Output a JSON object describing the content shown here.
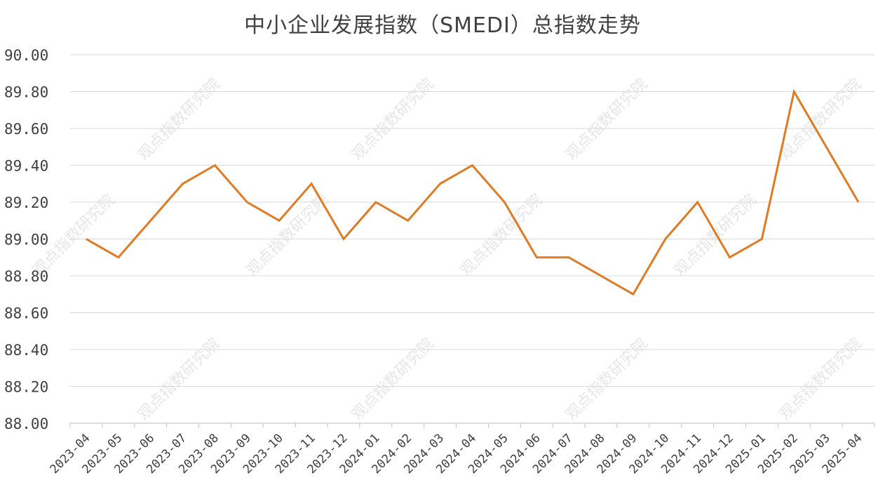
{
  "chart_data": {
    "type": "line",
    "title": "中小企业发展指数（SMEDI）总指数走势",
    "xlabel": "",
    "ylabel": "",
    "categories": [
      "2023-04",
      "2023-05",
      "2023-06",
      "2023-07",
      "2023-08",
      "2023-09",
      "2023-10",
      "2023-11",
      "2023-12",
      "2024-01",
      "2024-02",
      "2024-03",
      "2024-04",
      "2024-05",
      "2024-06",
      "2024-07",
      "2024-08",
      "2024-09",
      "2024-10",
      "2024-11",
      "2024-12",
      "2025-01",
      "2025-02",
      "2025-03",
      "2025-04"
    ],
    "series": [
      {
        "values": [
          89.0,
          88.9,
          89.1,
          89.3,
          89.4,
          89.2,
          89.1,
          89.3,
          89.0,
          89.2,
          89.1,
          89.3,
          89.4,
          89.2,
          88.9,
          88.9,
          88.8,
          88.7,
          89.0,
          89.2,
          88.9,
          89.0,
          89.8,
          89.5,
          89.2
        ],
        "color": "#E07B24"
      }
    ],
    "ylim": [
      88.0,
      90.0
    ],
    "yticks": [
      "88.00",
      "88.20",
      "88.40",
      "88.60",
      "88.80",
      "89.00",
      "89.20",
      "89.40",
      "89.60",
      "89.80",
      "90.00"
    ],
    "grid": true,
    "legend": "none",
    "watermark": "观点指数研究院"
  }
}
